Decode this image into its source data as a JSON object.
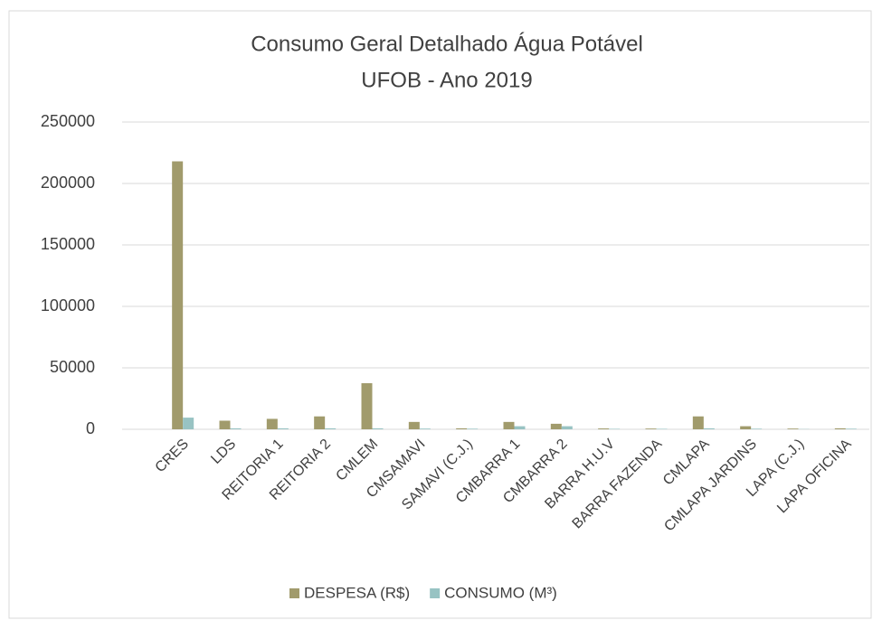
{
  "chart_data": {
    "type": "bar",
    "title": "Consumo Geral Detalhado Água Potável",
    "subtitle": "UFOB - Ano 2019",
    "categories": [
      "CRES",
      "LDS",
      "REITORIA 1",
      "REITORIA 2",
      "CMLEM",
      "CMSAMAVI",
      "SAMAVI (C.J.)",
      "CMBARRA 1",
      "CMBARRA 2",
      "BARRA H.U.V",
      "BARRA FAZENDA",
      "CMLAPA",
      "CMLAPA JARDINS",
      "LAPA (C.J.)",
      "LAPA OFICINA"
    ],
    "series": [
      {
        "name": "DESPESA (R$)",
        "color": "#a19b6c",
        "values": [
          218000,
          7000,
          8500,
          10500,
          37500,
          6000,
          800,
          6000,
          4500,
          700,
          600,
          10500,
          2500,
          600,
          800
        ]
      },
      {
        "name": "CONSUMO (M³)",
        "color": "#98c3c3",
        "values": [
          9500,
          800,
          800,
          800,
          800,
          600,
          500,
          2500,
          2500,
          400,
          400,
          800,
          500,
          200,
          500
        ]
      }
    ],
    "ylim": [
      0,
      250000
    ],
    "yticks": [
      0,
      50000,
      100000,
      150000,
      200000,
      250000
    ],
    "grid": true,
    "legend": "bottom"
  }
}
